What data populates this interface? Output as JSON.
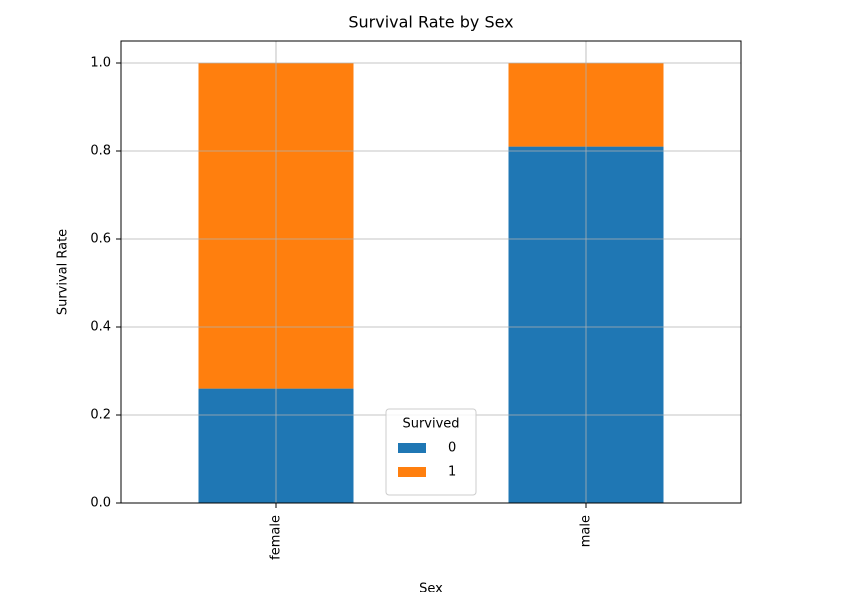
{
  "chart_data": {
    "type": "stacked_bar",
    "title": "Survival Rate by Sex",
    "x_label": "Sex",
    "y_label": "Survival Rate",
    "categories": [
      "female",
      "male"
    ],
    "series": [
      {
        "name": "0",
        "color": "#1f77b4",
        "values": [
          0.26,
          0.81
        ]
      },
      {
        "name": "1",
        "color": "#ff7f0e",
        "values": [
          0.74,
          0.19
        ]
      }
    ],
    "legend_title": "Survived",
    "legend_position": "lower center",
    "ylim": [
      0,
      1.05
    ],
    "yticks": [
      {
        "value": 0,
        "label": "0.0"
      },
      0.2,
      0.4,
      0.6,
      0.8,
      {
        "value": 1,
        "label": "1.0"
      }
    ],
    "grid": true
  }
}
